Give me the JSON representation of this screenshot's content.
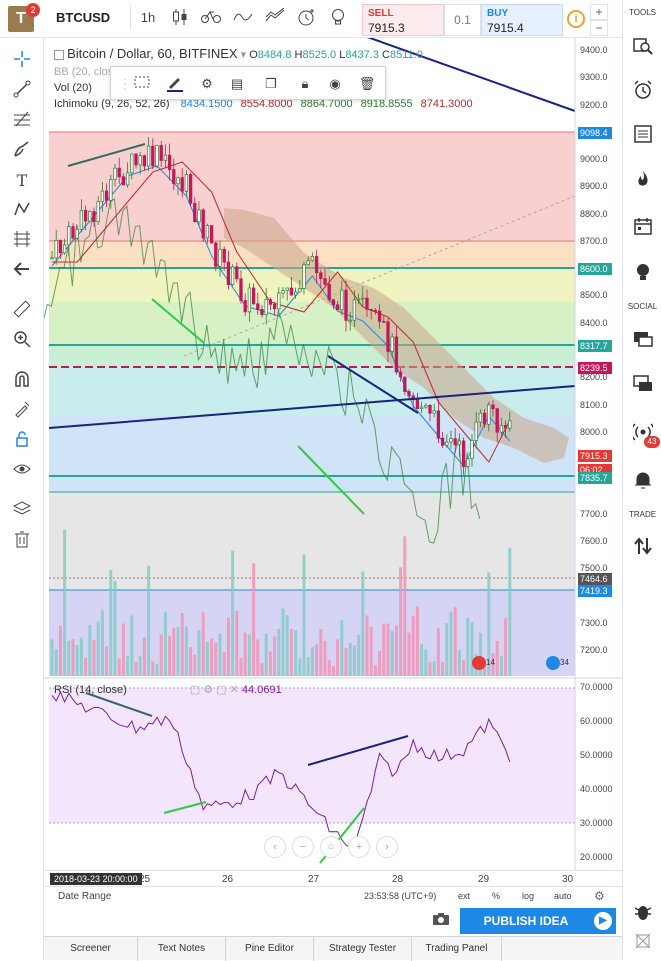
{
  "header": {
    "logo_letter": "T",
    "logo_badge": "2",
    "symbol": "BTCUSD",
    "interval": "1h",
    "sell": {
      "label": "SELL",
      "price": "7915.3"
    },
    "buy": {
      "label": "BUY",
      "price": "7915.4"
    },
    "quantity": "0.1",
    "plus": "+",
    "minus": "−"
  },
  "legend": {
    "title": "Bitcoin / Dollar, 60, BITFINEX",
    "o_label": "O",
    "o": "8484.8",
    "h_label": "H",
    "h": "8525.0",
    "l_label": "L",
    "l": "8437.3",
    "c_label": "C",
    "c": "8511.0",
    "bb": "BB (20, close",
    "vol": "Vol (20)",
    "ichimoku": "Ichimoku (9, 26, 52, 26)",
    "ichi_vals": [
      "8434.1500",
      "8554.8000",
      "8864.7000",
      "8918.8555",
      "8741.3000"
    ],
    "ichi_colors": [
      "#1e88e5",
      "#c62828",
      "#2e7d32",
      "#2e7d32",
      "#c62828"
    ],
    "rsi": "RSI (14, close)",
    "rsi_val": "44.0691"
  },
  "price_axis": {
    "labels": [
      "9400.0",
      "9300.0",
      "9200.0",
      "9000.0",
      "8900.0",
      "8800.0",
      "8700.0",
      "8500.0",
      "8400.0",
      "8200.0",
      "8100.0",
      "8000.0",
      "7700.0",
      "7600.0",
      "7500.0",
      "7300.0",
      "7200.0"
    ],
    "tags": [
      {
        "text": "9098.4",
        "color": "#1e88e5"
      },
      {
        "text": "8600.0",
        "color": "#26a69a"
      },
      {
        "text": "8317.7",
        "color": "#26a69a"
      },
      {
        "text": "8239.5",
        "color": "#c2185b"
      },
      {
        "text": "7915.3",
        "color": "#e53935"
      },
      {
        "text": "06:02",
        "color": "#e53935"
      },
      {
        "text": "7835.7",
        "color": "#26a69a"
      },
      {
        "text": "7464.6",
        "color": "#555"
      },
      {
        "text": "7419.3",
        "color": "#1e88e5"
      }
    ]
  },
  "rsi_axis": {
    "labels": [
      "70.0000",
      "60.0000",
      "50.0000",
      "40.0000",
      "30.0000",
      "20.0000"
    ]
  },
  "time_axis": {
    "cursor_label": "2018-03-23 20:00:00",
    "labels": [
      "25",
      "26",
      "27",
      "28",
      "29",
      "30"
    ]
  },
  "footer": {
    "date_range": "Date Range",
    "clock": "23:53:58 (UTC+9)",
    "options": [
      "ext",
      "%",
      "log",
      "auto"
    ],
    "publish": "PUBLISH IDEA"
  },
  "right_sidebar": {
    "tools": "TOOLS",
    "social": "SOCIAL",
    "trade": "TRADE",
    "badge": "43"
  },
  "bottom_tabs": [
    "Screener",
    "Text Notes",
    "Pine Editor",
    "Strategy Tester",
    "Trading Panel"
  ],
  "volume_markers": [
    "14",
    "34"
  ]
}
